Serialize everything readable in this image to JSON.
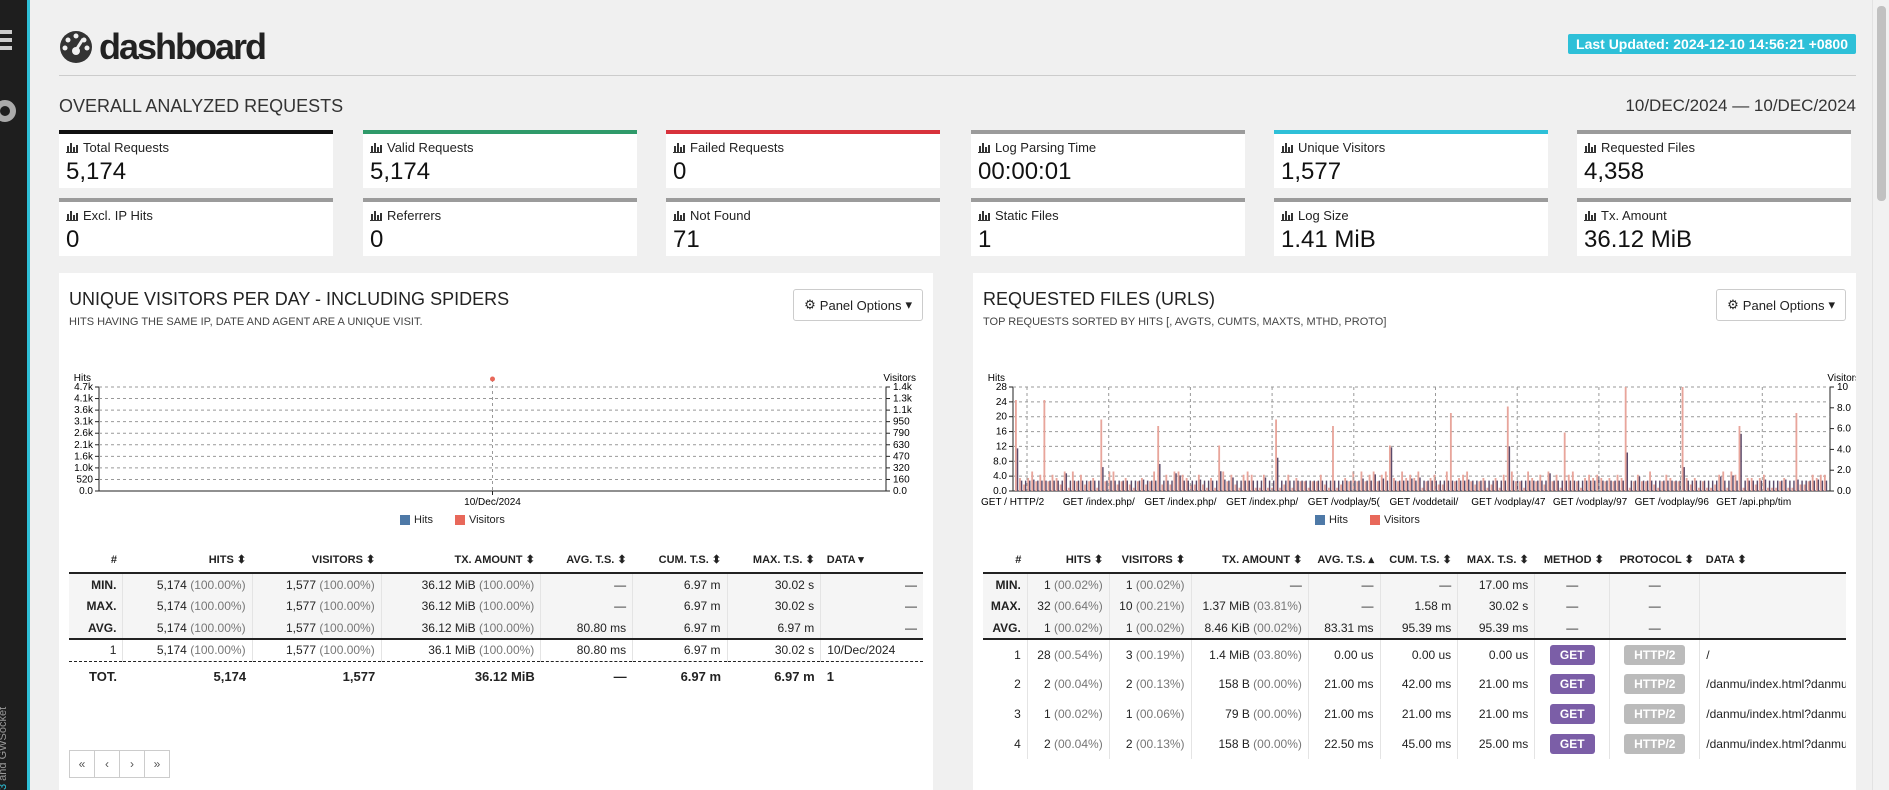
{
  "header": {
    "title": "dashboard",
    "last_updated": "Last Updated: 2024-12-10 14:56:21 +0800"
  },
  "sidebar": {
    "footer_prefix": "3",
    "footer_text": " and GWSocket"
  },
  "overall": {
    "heading": "OVERALL ANALYZED REQUESTS",
    "date_range": "10/DEC/2024 — 10/DEC/2024"
  },
  "cards": [
    {
      "label": "Total Requests",
      "value": "5,174",
      "color": "#111111"
    },
    {
      "label": "Valid Requests",
      "value": "5,174",
      "color": "#2f9a6a"
    },
    {
      "label": "Failed Requests",
      "value": "0",
      "color": "#d8323c"
    },
    {
      "label": "Log Parsing Time",
      "value": "00:00:01",
      "color": "#9b9b9b"
    },
    {
      "label": "Unique Visitors",
      "value": "1,577",
      "color": "#2ec0d8"
    },
    {
      "label": "Requested Files",
      "value": "4,358",
      "color": "#9b9b9b"
    },
    {
      "label": "Excl. IP Hits",
      "value": "0",
      "color": "#9b9b9b"
    },
    {
      "label": "Referrers",
      "value": "0",
      "color": "#9b9b9b"
    },
    {
      "label": "Not Found",
      "value": "71",
      "color": "#9b9b9b"
    },
    {
      "label": "Static Files",
      "value": "1",
      "color": "#9b9b9b"
    },
    {
      "label": "Log Size",
      "value": "1.41 MiB",
      "color": "#9b9b9b"
    },
    {
      "label": "Tx. Amount",
      "value": "36.12 MiB",
      "color": "#9b9b9b"
    }
  ],
  "visitors_panel": {
    "title": "UNIQUE VISITORS PER DAY - INCLUDING SPIDERS",
    "subtitle": "HITS HAVING THE SAME IP, DATE AND AGENT ARE A UNIQUE VISIT.",
    "options_label": "Panel Options",
    "columns": [
      "#",
      "HITS ⬍",
      "VISITORS ⬍",
      "TX. AMOUNT ⬍",
      "AVG. T.S. ⬍",
      "CUM. T.S. ⬍",
      "MAX. T.S. ⬍",
      "DATA ▾"
    ],
    "stats": [
      [
        "MIN.",
        "5,174",
        "(100.00%)",
        "1,577",
        "(100.00%)",
        "36.12 MiB",
        "(100.00%)",
        "—",
        "6.97 m",
        "30.02 s",
        "—"
      ],
      [
        "MAX.",
        "5,174",
        "(100.00%)",
        "1,577",
        "(100.00%)",
        "36.12 MiB",
        "(100.00%)",
        "—",
        "6.97 m",
        "30.02 s",
        "—"
      ],
      [
        "AVG.",
        "5,174",
        "(100.00%)",
        "1,577",
        "(100.00%)",
        "36.12 MiB",
        "(100.00%)",
        "80.80 ms",
        "6.97 m",
        "6.97 m",
        "—"
      ]
    ],
    "rows": [
      [
        "1",
        "5,174",
        "(100.00%)",
        "1,577",
        "(100.00%)",
        "36.1 MiB",
        "(100.00%)",
        "80.80 ms",
        "6.97 m",
        "30.02 s",
        "10/Dec/2024"
      ]
    ],
    "totals": [
      "TOT.",
      "5,174",
      "1,577",
      "36.12 MiB",
      "—",
      "6.97 m",
      "6.97 m",
      "1"
    ],
    "pager": [
      "«",
      "‹",
      "›",
      "»"
    ]
  },
  "files_panel": {
    "title": "REQUESTED FILES (URLS)",
    "subtitle": "TOP REQUESTS SORTED BY HITS [, AVGTS, CUMTS, MAXTS, MTHD, PROTO]",
    "options_label": "Panel Options",
    "columns": [
      "#",
      "HITS ⬍",
      "VISITORS ⬍",
      "TX. AMOUNT ⬍",
      "AVG. T.S. ▴",
      "CUM. T.S. ⬍",
      "MAX. T.S. ⬍",
      "METHOD ⬍",
      "PROTOCOL ⬍",
      "DATA ⬍"
    ],
    "stats": [
      [
        "MIN.",
        "1",
        "(00.02%)",
        "1",
        "(00.02%)",
        "—",
        "",
        "—",
        "—",
        "17.00 ms",
        "—",
        "—",
        ""
      ],
      [
        "MAX.",
        "32",
        "(00.64%)",
        "10",
        "(00.21%)",
        "1.37 MiB",
        "(03.81%)",
        "—",
        "1.58 m",
        "30.02 s",
        "—",
        "—",
        ""
      ],
      [
        "AVG.",
        "1",
        "(00.02%)",
        "1",
        "(00.02%)",
        "8.46 KiB",
        "(00.02%)",
        "83.31 ms",
        "95.39 ms",
        "95.39 ms",
        "—",
        "—",
        ""
      ]
    ],
    "rows": [
      [
        "1",
        "28",
        "(00.54%)",
        "3",
        "(00.19%)",
        "1.4 MiB",
        "(03.80%)",
        "0.00 us",
        "0.00 us",
        "0.00 us",
        "GET",
        "HTTP/2",
        "/"
      ],
      [
        "2",
        "2",
        "(00.04%)",
        "2",
        "(00.13%)",
        "158 B",
        "(00.00%)",
        "21.00 ms",
        "42.00 ms",
        "21.00 ms",
        "GET",
        "HTTP/2",
        "/danmu/index.html?danmu_vo"
      ],
      [
        "3",
        "1",
        "(00.02%)",
        "1",
        "(00.06%)",
        "79 B",
        "(00.00%)",
        "21.00 ms",
        "21.00 ms",
        "21.00 ms",
        "GET",
        "HTTP/2",
        "/danmu/index.html?danmu_vo"
      ],
      [
        "4",
        "2",
        "(00.04%)",
        "2",
        "(00.13%)",
        "158 B",
        "(00.00%)",
        "22.50 ms",
        "45.00 ms",
        "25.00 ms",
        "GET",
        "HTTP/2",
        "/danmu/index.html?danmu_vo"
      ]
    ]
  },
  "chart_data": [
    {
      "type": "area",
      "ylabel": "Hits",
      "y2label": "Visitors",
      "categories": [
        "10/Dec/2024"
      ],
      "series": [
        {
          "name": "Hits",
          "values": [
            5174
          ],
          "color": "#4e79a7"
        },
        {
          "name": "Visitors",
          "values": [
            1577
          ],
          "color": "#e8685a"
        }
      ],
      "y_ticks": [
        "0.0",
        "520",
        "1.0k",
        "1.6k",
        "2.1k",
        "2.6k",
        "3.1k",
        "3.6k",
        "4.1k",
        "4.7k"
      ],
      "y2_ticks": [
        "0.0",
        "160",
        "320",
        "470",
        "630",
        "790",
        "950",
        "1.1k",
        "1.3k",
        "1.4k"
      ],
      "ylim": [
        0,
        5174
      ],
      "y2lim": [
        0,
        1577
      ],
      "grid": true
    },
    {
      "type": "bar",
      "ylabel": "Hits",
      "y2label": "Visitors",
      "x_tick_labels": [
        "GET / HTTP/2",
        "GET /index.php/",
        "GET /index.php/",
        "GET /index.php/",
        "GET /vodplay/5(",
        "GET /voddetail/",
        "GET /vodplay/47",
        "GET /vodplay/97",
        "GET /vodplay/96",
        "GET /api.php/tim"
      ],
      "series": [
        {
          "name": "Hits",
          "color": "#4e79a7"
        },
        {
          "name": "Visitors",
          "color": "#e8685a"
        }
      ],
      "y_ticks": [
        "0.0",
        "4.0",
        "8.0",
        "12",
        "16",
        "20",
        "24",
        "28"
      ],
      "y2_ticks": [
        "0.0",
        "2.0",
        "4.0",
        "6.0",
        "8.0",
        "10"
      ],
      "ylim": [
        0,
        32
      ],
      "y2lim": [
        0,
        10
      ],
      "note": "approximately 200 dense bars; values mostly 1-4 hits with occasional spikes up to 32",
      "spikes": [
        28,
        22,
        20,
        14,
        22,
        20,
        14,
        24,
        26,
        18,
        32,
        32,
        20,
        24
      ],
      "grid": true
    }
  ]
}
